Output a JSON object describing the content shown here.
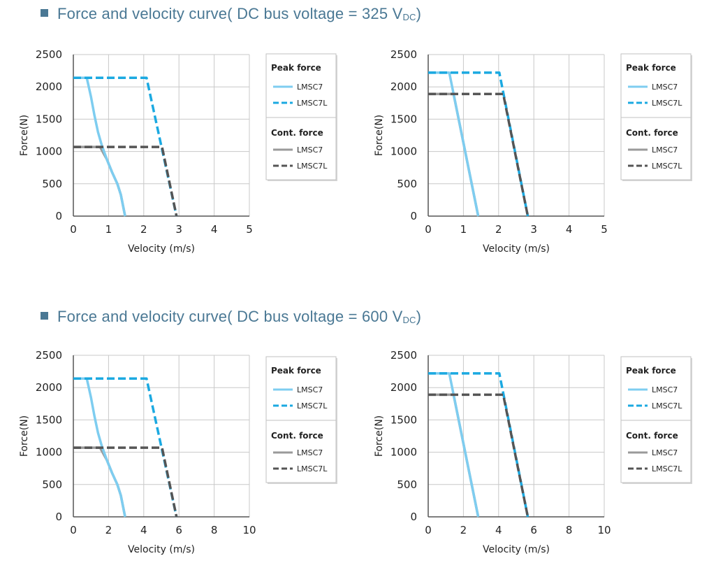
{
  "sections": [
    {
      "title_text": "Force and velocity curve( DC bus voltage = 325 V",
      "title_sub": "DC",
      "title_end": ")"
    },
    {
      "title_text": "Force and velocity curve( DC bus voltage = 600 V",
      "title_sub": "DC",
      "title_end": ")"
    }
  ],
  "colors": {
    "peak_lmsc7": "#7ecdf0",
    "peak_lmsc7l": "#1ba9e1",
    "cont_lmsc7": "#9a9a9a",
    "cont_lmsc7l": "#555555",
    "grid": "#c8c8c8"
  },
  "legend": {
    "peak_title": "Peak force",
    "cont_title": "Cont. force",
    "lmsc7": "LMSC7",
    "lmsc7l": "LMSC7L"
  },
  "chart_data": [
    {
      "type": "line",
      "xlabel": "Velocity (m/s)",
      "ylabel": "Force(N)",
      "xlim": [
        0,
        5
      ],
      "ylim": [
        0,
        2500
      ],
      "xticks": [
        0,
        1,
        2,
        3,
        4,
        5
      ],
      "yticks": [
        0,
        500,
        1000,
        1500,
        2000,
        2500
      ],
      "grid": true,
      "legend_position": "right",
      "series": [
        {
          "name": "LMSC7",
          "group": "Peak force",
          "points": [
            [
              0,
              2140
            ],
            [
              0.38,
              2140
            ],
            [
              0.5,
              1850
            ],
            [
              0.6,
              1560
            ],
            [
              0.7,
              1300
            ],
            [
              0.8,
              1110
            ],
            [
              0.95,
              880
            ],
            [
              1.1,
              680
            ],
            [
              1.25,
              500
            ],
            [
              1.35,
              330
            ],
            [
              1.47,
              0
            ]
          ]
        },
        {
          "name": "LMSC7L",
          "group": "Peak force",
          "points": [
            [
              0,
              2140
            ],
            [
              2.08,
              2140
            ],
            [
              2.93,
              0
            ]
          ]
        },
        {
          "name": "LMSC7",
          "group": "Cont. force",
          "points": [
            [
              0,
              1070
            ],
            [
              0.76,
              1070
            ],
            [
              0.95,
              880
            ],
            [
              1.1,
              680
            ],
            [
              1.25,
              500
            ],
            [
              1.35,
              330
            ],
            [
              1.47,
              0
            ]
          ]
        },
        {
          "name": "LMSC7L",
          "group": "Cont. force",
          "points": [
            [
              0,
              1070
            ],
            [
              2.52,
              1070
            ],
            [
              2.93,
              0
            ]
          ]
        }
      ]
    },
    {
      "type": "line",
      "xlabel": "Velocity (m/s)",
      "ylabel": "Force(N)",
      "xlim": [
        0,
        5
      ],
      "ylim": [
        0,
        2500
      ],
      "xticks": [
        0,
        1,
        2,
        3,
        4,
        5
      ],
      "yticks": [
        0,
        500,
        1000,
        1500,
        2000,
        2500
      ],
      "grid": true,
      "legend_position": "right",
      "series": [
        {
          "name": "LMSC7",
          "group": "Peak force",
          "points": [
            [
              0,
              2220
            ],
            [
              0.6,
              2220
            ],
            [
              1.42,
              0
            ]
          ]
        },
        {
          "name": "LMSC7L",
          "group": "Peak force",
          "points": [
            [
              0,
              2220
            ],
            [
              2.02,
              2220
            ],
            [
              2.83,
              0
            ]
          ]
        },
        {
          "name": "LMSC7",
          "group": "Cont. force",
          "points": [
            [
              0,
              1890
            ],
            [
              0.72,
              1890
            ],
            [
              1.42,
              0
            ]
          ]
        },
        {
          "name": "LMSC7L",
          "group": "Cont. force",
          "points": [
            [
              0,
              1890
            ],
            [
              2.13,
              1890
            ],
            [
              2.83,
              0
            ]
          ]
        }
      ]
    },
    {
      "type": "line",
      "xlabel": "Velocity (m/s)",
      "ylabel": "Force(N)",
      "xlim": [
        0,
        10
      ],
      "ylim": [
        0,
        2500
      ],
      "xticks": [
        0,
        2,
        4,
        6,
        8,
        10
      ],
      "yticks": [
        0,
        500,
        1000,
        1500,
        2000,
        2500
      ],
      "grid": true,
      "legend_position": "right",
      "series": [
        {
          "name": "LMSC7",
          "group": "Peak force",
          "points": [
            [
              0,
              2140
            ],
            [
              0.76,
              2140
            ],
            [
              1.0,
              1850
            ],
            [
              1.2,
              1560
            ],
            [
              1.4,
              1300
            ],
            [
              1.6,
              1110
            ],
            [
              1.9,
              880
            ],
            [
              2.2,
              680
            ],
            [
              2.5,
              500
            ],
            [
              2.7,
              330
            ],
            [
              2.94,
              0
            ]
          ]
        },
        {
          "name": "LMSC7L",
          "group": "Peak force",
          "points": [
            [
              0,
              2140
            ],
            [
              4.16,
              2140
            ],
            [
              5.86,
              0
            ]
          ]
        },
        {
          "name": "LMSC7",
          "group": "Cont. force",
          "points": [
            [
              0,
              1070
            ],
            [
              1.52,
              1070
            ],
            [
              1.9,
              880
            ],
            [
              2.2,
              680
            ],
            [
              2.5,
              500
            ],
            [
              2.7,
              330
            ],
            [
              2.94,
              0
            ]
          ]
        },
        {
          "name": "LMSC7L",
          "group": "Cont. force",
          "points": [
            [
              0,
              1070
            ],
            [
              5.04,
              1070
            ],
            [
              5.86,
              0
            ]
          ]
        }
      ]
    },
    {
      "type": "line",
      "xlabel": "Velocity (m/s)",
      "ylabel": "Force(N)",
      "xlim": [
        0,
        10
      ],
      "ylim": [
        0,
        2500
      ],
      "xticks": [
        0,
        2,
        4,
        6,
        8,
        10
      ],
      "yticks": [
        0,
        500,
        1000,
        1500,
        2000,
        2500
      ],
      "grid": true,
      "legend_position": "right",
      "series": [
        {
          "name": "LMSC7",
          "group": "Peak force",
          "points": [
            [
              0,
              2220
            ],
            [
              1.2,
              2220
            ],
            [
              2.84,
              0
            ]
          ]
        },
        {
          "name": "LMSC7L",
          "group": "Peak force",
          "points": [
            [
              0,
              2220
            ],
            [
              4.04,
              2220
            ],
            [
              5.66,
              0
            ]
          ]
        },
        {
          "name": "LMSC7",
          "group": "Cont. force",
          "points": [
            [
              0,
              1890
            ],
            [
              1.44,
              1890
            ],
            [
              2.84,
              0
            ]
          ]
        },
        {
          "name": "LMSC7L",
          "group": "Cont. force",
          "points": [
            [
              0,
              1890
            ],
            [
              4.26,
              1890
            ],
            [
              5.66,
              0
            ]
          ]
        }
      ]
    }
  ]
}
